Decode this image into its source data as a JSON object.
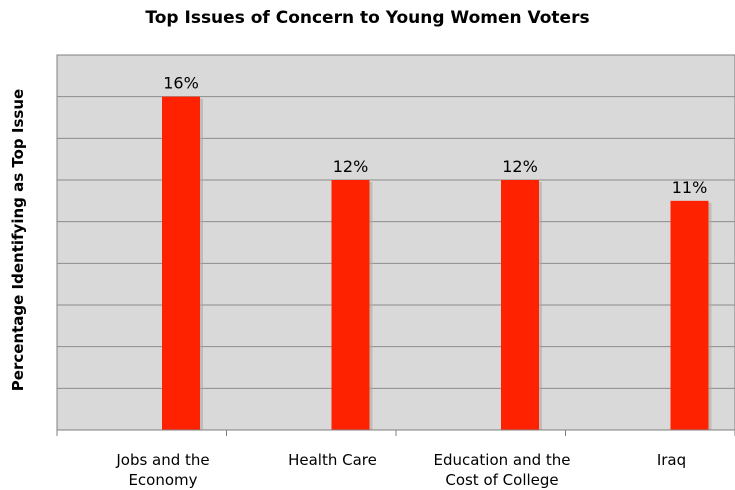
{
  "chart_data": {
    "type": "bar",
    "title": "Top Issues of Concern to Young Women Voters",
    "xlabel": "",
    "ylabel": "Percentage Identifying as Top Issue",
    "categories": [
      "Jobs and the\nEconomy",
      "Health Care",
      "Education and the\nCost of College",
      "Iraq"
    ],
    "values": [
      16,
      12,
      12,
      11
    ],
    "data_labels": [
      "16%",
      "12%",
      "12%",
      "11%"
    ],
    "ylim": [
      0,
      18
    ],
    "grid": true,
    "legend": "none",
    "colors": {
      "bar": "#ff2200",
      "plot_background": "#d9d9d9",
      "gridline": "#8c8c8c"
    }
  }
}
